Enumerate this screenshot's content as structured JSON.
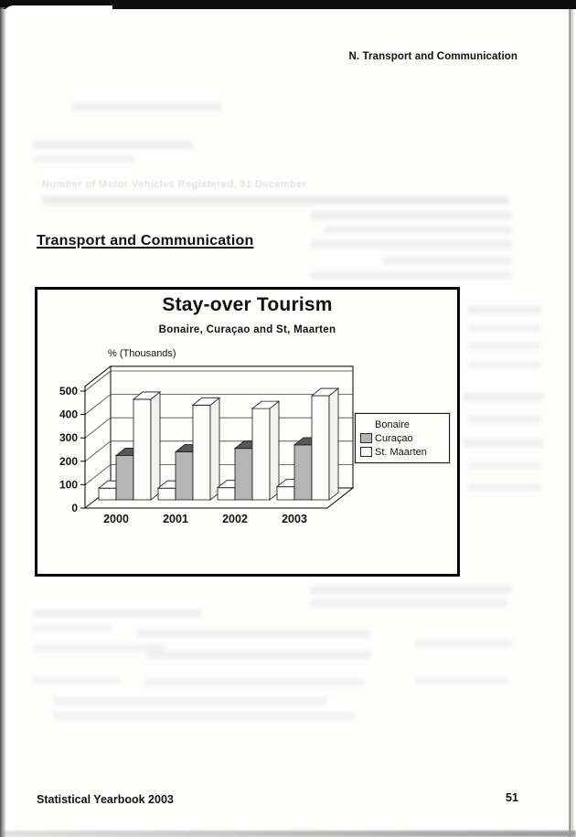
{
  "page": {
    "header_right": "N. Transport and Communication",
    "section_heading": "Transport and Communication",
    "footer_left": "Statistical Yearbook 2003",
    "page_number": "51"
  },
  "ghost_bleed_through": {
    "caption": "Number of Motor Vehicles Registered, 31 December"
  },
  "chart_data": {
    "type": "bar",
    "variant": "3d-clustered-column",
    "title": "Stay-over Tourism",
    "subtitle": "Bonaire, Curaçao and St, Maarten",
    "ylabel": "% (Thousands)",
    "categories": [
      "2000",
      "2001",
      "2002",
      "2003"
    ],
    "series": [
      {
        "name": "Bonaire",
        "values": [
          50,
          50,
          52,
          56
        ],
        "color_front": "#fbfbf9",
        "color_top": "#ffffff",
        "color_side": "#efefec",
        "legend_swatch_visible": false
      },
      {
        "name": "Curaçao",
        "values": [
          190,
          205,
          220,
          235
        ],
        "color_front": "#b5b5b5",
        "color_top": "#575757",
        "color_side": "#8f8f8f",
        "legend_swatch_visible": true
      },
      {
        "name": "St. Maarten",
        "values": [
          430,
          405,
          390,
          445
        ],
        "color_front": "#fdfdfc",
        "color_top": "#ffffff",
        "color_side": "#f2f2f0",
        "legend_swatch_visible": true
      }
    ],
    "ylim": [
      0,
      500
    ],
    "ytick_interval": 100,
    "grid": true,
    "legend_position": "right",
    "axis_color": "#000000",
    "gridline_color": "#444444",
    "bar_outline_color": "#141414"
  }
}
